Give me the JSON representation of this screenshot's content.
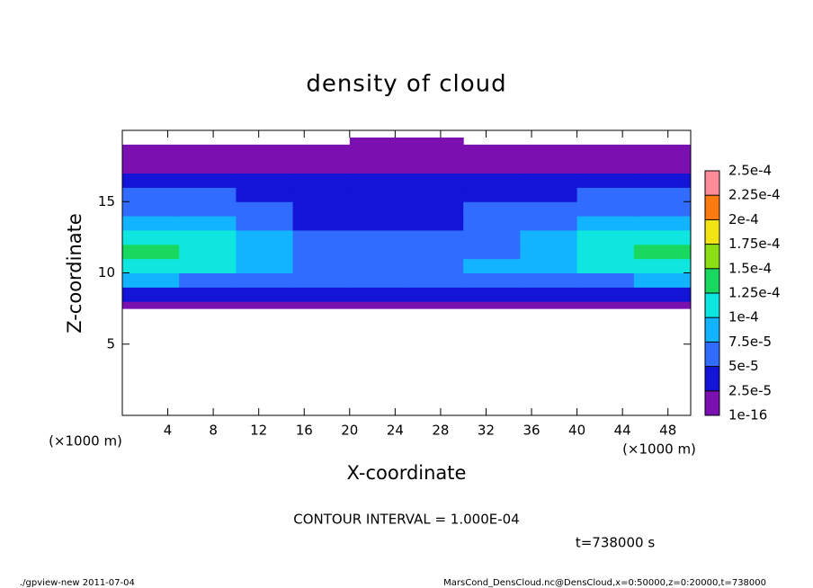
{
  "chart_data": {
    "type": "heatmap",
    "title": "density of cloud",
    "x_label": "X-coordinate",
    "y_label": "Z-coordinate",
    "x_unit": "(×1000 m)",
    "annotation": "CONTOUR INTERVAL = 1.000E-04",
    "time_label": "t=738000 s",
    "footer_left": "./gpview-new  2011-07-04",
    "footer_right": "MarsCond_DensCloud.nc@DensCloud,x=0:50000,z=0:20000,t=738000",
    "xlim": [
      0,
      50
    ],
    "ylim": [
      0,
      20
    ],
    "xticks": [
      4,
      8,
      12,
      16,
      20,
      24,
      28,
      32,
      36,
      40,
      44,
      48
    ],
    "yticks": [
      5,
      10,
      15
    ],
    "x_bins": [
      0,
      5,
      10,
      15,
      20,
      25,
      30,
      35,
      40,
      45,
      50
    ],
    "z_bins": [
      7.5,
      8,
      9,
      10,
      11,
      12,
      13,
      14,
      15,
      16,
      17,
      18,
      19,
      19.5
    ],
    "values": [
      [
        1e-06,
        1e-06,
        1e-06,
        1e-06,
        1e-06,
        1e-06,
        1e-06,
        1e-06,
        1e-06,
        1e-06
      ],
      [
        3e-05,
        3e-05,
        3e-05,
        3.5e-05,
        4e-05,
        3.5e-05,
        3e-05,
        3e-05,
        3e-05,
        3e-05
      ],
      [
        8e-05,
        7e-05,
        6e-05,
        6e-05,
        6e-05,
        6e-05,
        6e-05,
        6e-05,
        7e-05,
        8e-05
      ],
      [
        0.00011,
        0.0001,
        8e-05,
        7e-05,
        7e-05,
        7e-05,
        8e-05,
        8e-05,
        0.0001,
        0.00011
      ],
      [
        0.00013,
        0.00012,
        9e-05,
        6e-05,
        6e-05,
        6e-05,
        7e-05,
        9e-05,
        0.00012,
        0.00013
      ],
      [
        0.00012,
        0.00011,
        8e-05,
        5e-05,
        5e-05,
        5e-05,
        6e-05,
        8e-05,
        0.00011,
        0.00012
      ],
      [
        9e-05,
        8e-05,
        6e-05,
        4.5e-05,
        4e-05,
        4e-05,
        5e-05,
        7e-05,
        8e-05,
        9e-05
      ],
      [
        6e-05,
        6e-05,
        5.5e-05,
        4.5e-05,
        4e-05,
        4e-05,
        5e-05,
        5.5e-05,
        6e-05,
        6e-05
      ],
      [
        5e-05,
        5e-05,
        4.5e-05,
        4e-05,
        3.5e-05,
        3.5e-05,
        4e-05,
        4.5e-05,
        5e-05,
        5e-05
      ],
      [
        3e-05,
        3e-05,
        3e-05,
        3e-05,
        3e-05,
        3e-05,
        3e-05,
        3e-05,
        3e-05,
        3e-05
      ],
      [
        1.5e-05,
        1.5e-05,
        1.5e-05,
        1.5e-05,
        1.5e-05,
        1.5e-05,
        1.5e-05,
        1.5e-05,
        1.5e-05,
        1.5e-05
      ],
      [
        1e-06,
        1e-06,
        1e-06,
        1e-06,
        1e-06,
        1e-06,
        1e-06,
        1e-06,
        1e-06,
        1e-06
      ],
      [
        null,
        null,
        null,
        null,
        1e-06,
        1e-06,
        null,
        null,
        null,
        null
      ]
    ],
    "levels": [
      {
        "value": 1e-16,
        "label": "1e-16"
      },
      {
        "value": 2.5e-05,
        "label": "2.5e-5"
      },
      {
        "value": 5e-05,
        "label": "5e-5"
      },
      {
        "value": 7.5e-05,
        "label": "7.5e-5"
      },
      {
        "value": 0.0001,
        "label": "1e-4"
      },
      {
        "value": 0.000125,
        "label": "1.25e-4"
      },
      {
        "value": 0.00015,
        "label": "1.5e-4"
      },
      {
        "value": 0.000175,
        "label": "1.75e-4"
      },
      {
        "value": 0.0002,
        "label": "2e-4"
      },
      {
        "value": 0.000225,
        "label": "2.25e-4"
      },
      {
        "value": 0.00025,
        "label": "2.5e-4"
      }
    ],
    "colors": [
      "#7a10b0",
      "#1414d8",
      "#2f6cff",
      "#13b4ff",
      "#10e6e0",
      "#18d860",
      "#8ae014",
      "#f2e414",
      "#ff7a10",
      "#ff8c9a"
    ]
  }
}
